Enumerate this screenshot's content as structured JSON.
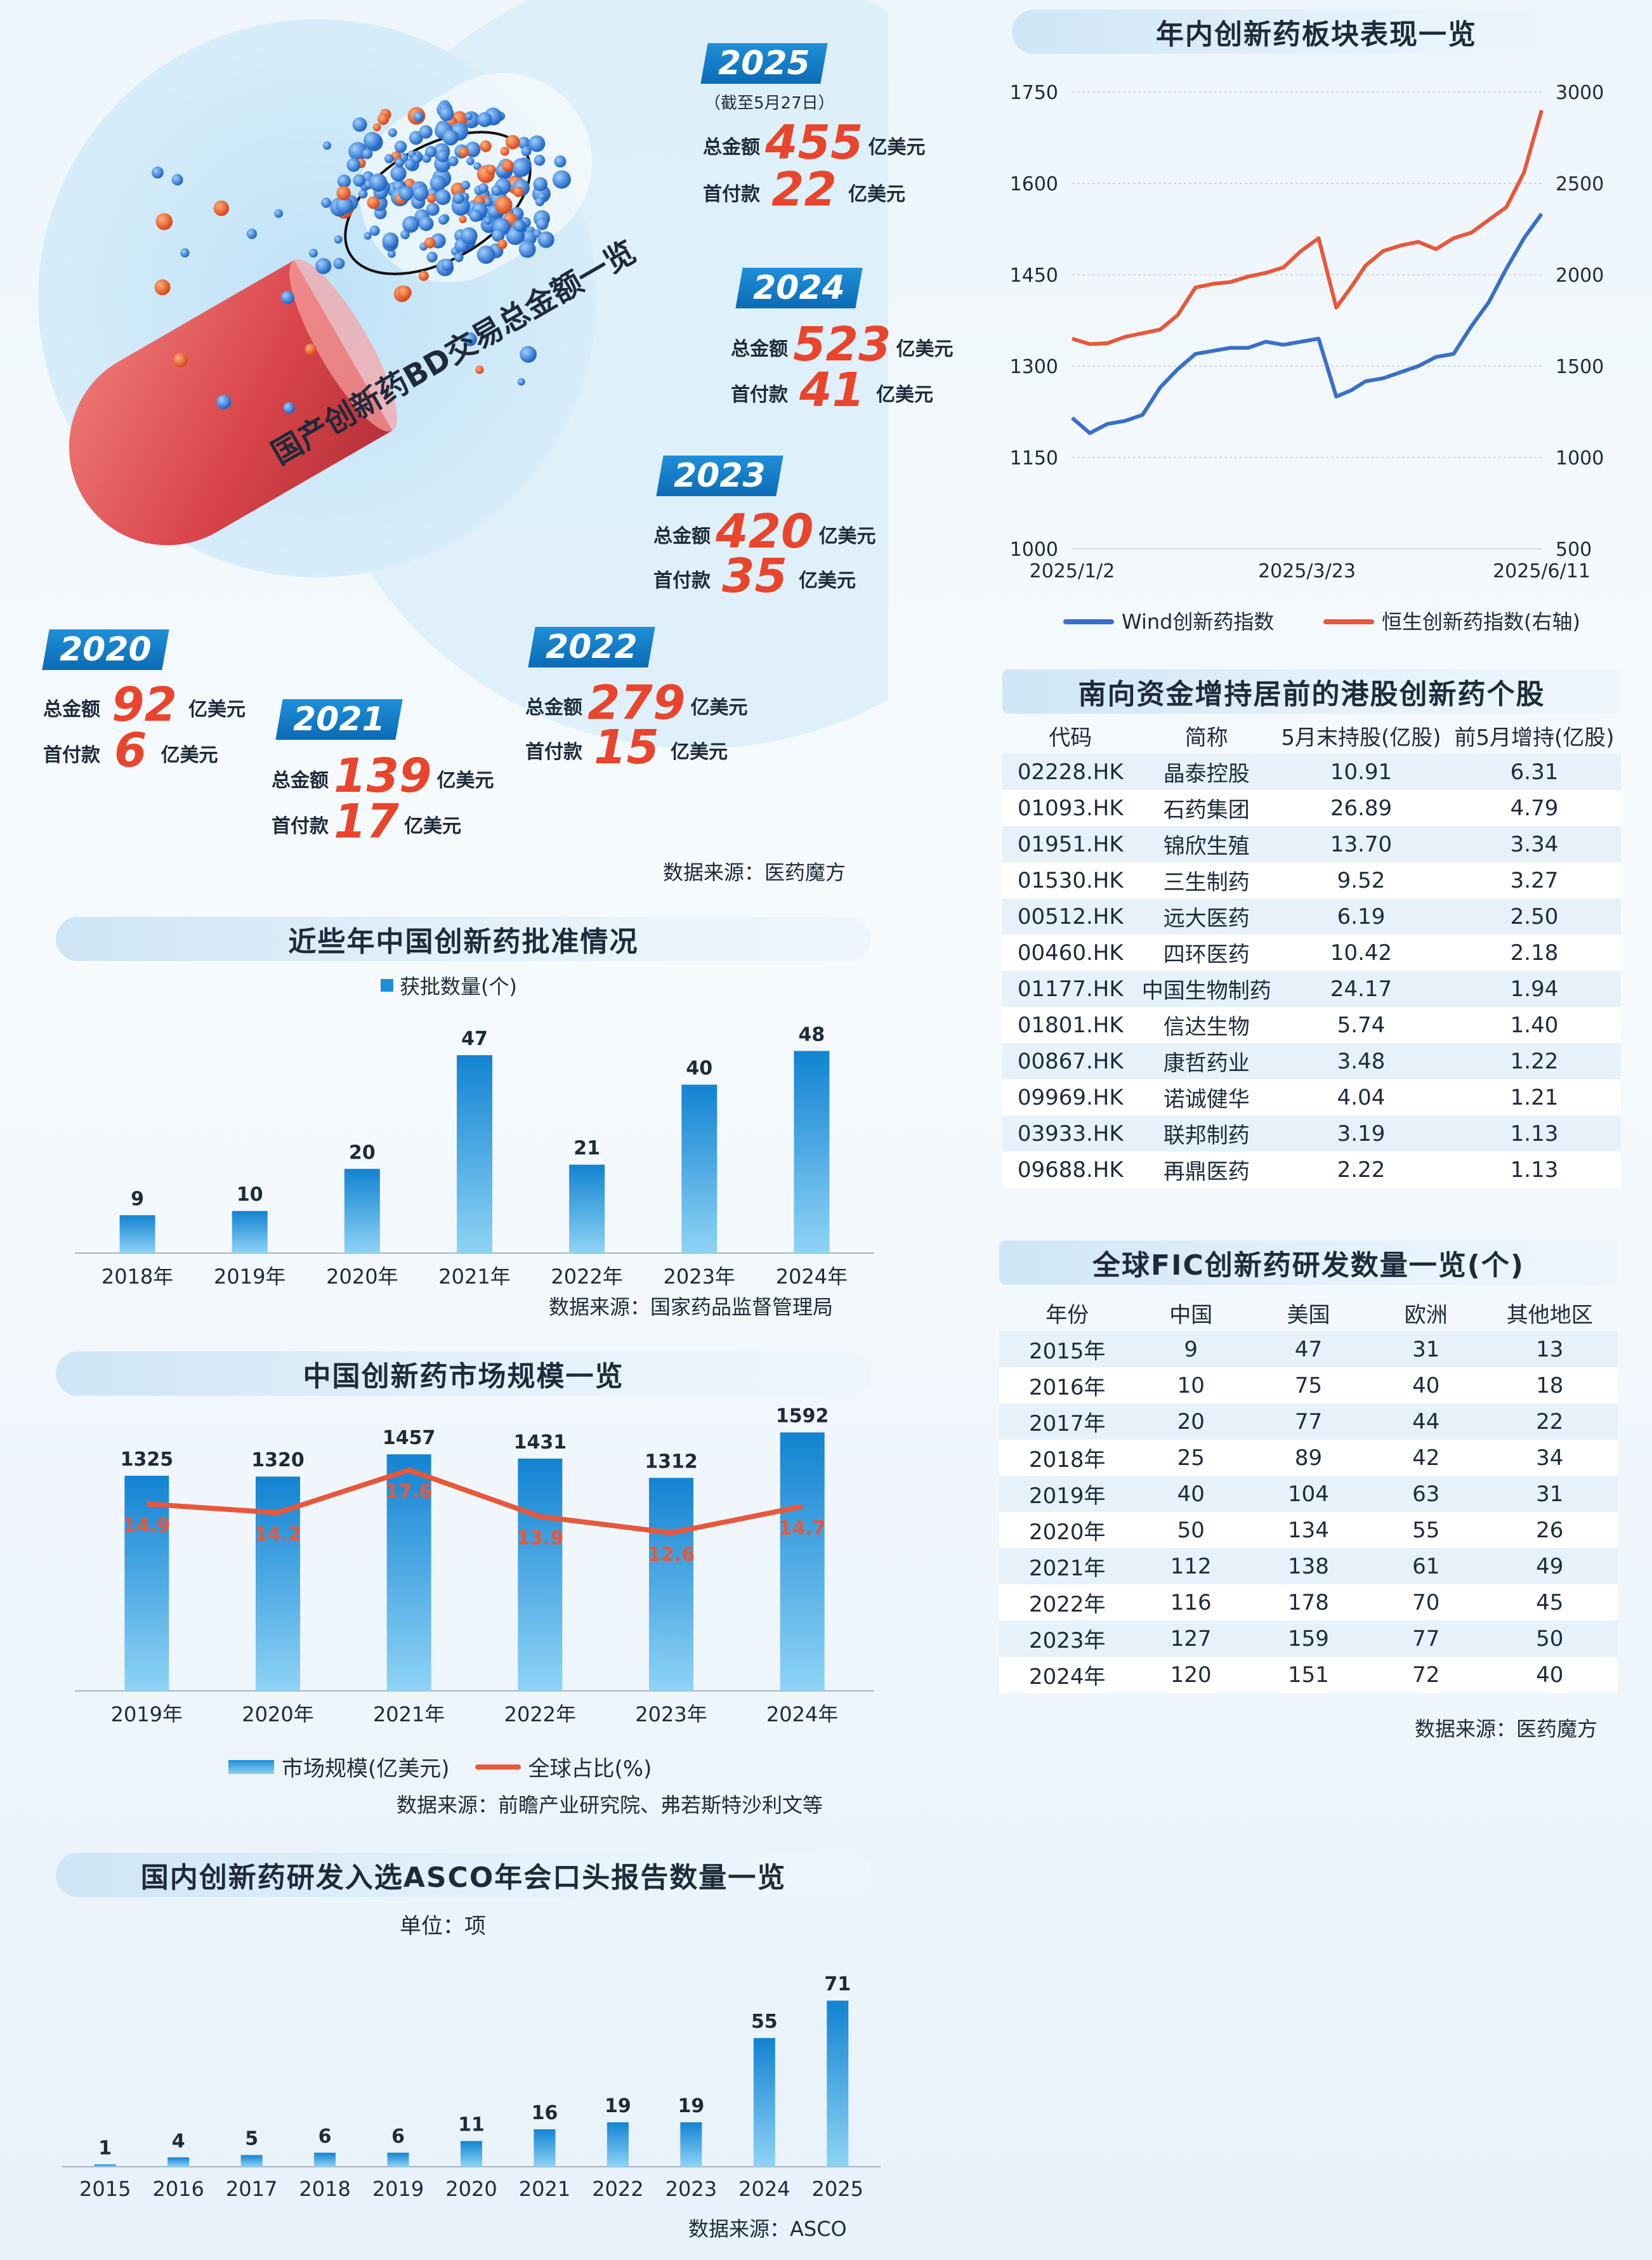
{
  "bd_panel": {
    "title": "国产创新药BD交易总金额一览",
    "source": "数据来源：医药魔方",
    "total_label": "总金额",
    "upfront_label": "首付款",
    "unit": "亿美元",
    "years": [
      {
        "year": "2025",
        "note": "（截至5月27日）",
        "total": "455",
        "upfront": "22"
      },
      {
        "year": "2024",
        "note": "",
        "total": "523",
        "upfront": "41"
      },
      {
        "year": "2023",
        "note": "",
        "total": "420",
        "upfront": "35"
      },
      {
        "year": "2022",
        "note": "",
        "total": "279",
        "upfront": "15"
      },
      {
        "year": "2021",
        "note": "",
        "total": "139",
        "upfront": "17"
      },
      {
        "year": "2020",
        "note": "",
        "total": "92",
        "upfront": "6"
      }
    ],
    "colors": {
      "accent": "#e8452c",
      "badge": "#0b6bb5"
    }
  },
  "line_panel": {
    "title": "年内创新药板块表现一览",
    "legend": [
      "Wind创新药指数",
      "恒生创新药指数(右轴)"
    ],
    "colors": [
      "#3a6fc9",
      "#e8573a"
    ]
  },
  "south_table": {
    "title": "南向资金增持居前的港股创新药个股",
    "headers": [
      "代码",
      "简称",
      "5月末持股(亿股)",
      "前5月增持(亿股)"
    ],
    "rows": [
      [
        "02228.HK",
        "晶泰控股",
        "10.91",
        "6.31"
      ],
      [
        "01093.HK",
        "石药集团",
        "26.89",
        "4.79"
      ],
      [
        "01951.HK",
        "锦欣生殖",
        "13.70",
        "3.34"
      ],
      [
        "01530.HK",
        "三生制药",
        "9.52",
        "3.27"
      ],
      [
        "00512.HK",
        "远大医药",
        "6.19",
        "2.50"
      ],
      [
        "00460.HK",
        "四环医药",
        "10.42",
        "2.18"
      ],
      [
        "01177.HK",
        "中国生物制药",
        "24.17",
        "1.94"
      ],
      [
        "01801.HK",
        "信达生物",
        "5.74",
        "1.40"
      ],
      [
        "00867.HK",
        "康哲药业",
        "3.48",
        "1.22"
      ],
      [
        "09969.HK",
        "诺诚健华",
        "4.04",
        "1.21"
      ],
      [
        "03933.HK",
        "联邦制药",
        "3.19",
        "1.13"
      ],
      [
        "09688.HK",
        "再鼎医药",
        "2.22",
        "1.13"
      ]
    ]
  },
  "fic_table": {
    "title": "全球FIC创新药研发数量一览(个)",
    "headers": [
      "年份",
      "中国",
      "美国",
      "欧洲",
      "其他地区"
    ],
    "rows": [
      [
        "2015年",
        "9",
        "47",
        "31",
        "13"
      ],
      [
        "2016年",
        "10",
        "75",
        "40",
        "18"
      ],
      [
        "2017年",
        "20",
        "77",
        "44",
        "22"
      ],
      [
        "2018年",
        "25",
        "89",
        "42",
        "34"
      ],
      [
        "2019年",
        "40",
        "104",
        "63",
        "31"
      ],
      [
        "2020年",
        "50",
        "134",
        "55",
        "26"
      ],
      [
        "2021年",
        "112",
        "138",
        "61",
        "49"
      ],
      [
        "2022年",
        "116",
        "178",
        "70",
        "45"
      ],
      [
        "2023年",
        "127",
        "159",
        "77",
        "50"
      ],
      [
        "2024年",
        "120",
        "151",
        "72",
        "40"
      ]
    ],
    "source": "数据来源：医药魔方"
  },
  "approvals_panel": {
    "title": "近些年中国创新药批准情况",
    "legend": "获批数量(个)",
    "source": "数据来源：国家药品监督管理局"
  },
  "market_panel": {
    "title": "中国创新药市场规模一览",
    "legend": [
      "市场规模(亿美元)",
      "全球占比(%)"
    ],
    "source": "数据来源：前瞻产业研究院、弗若斯特沙利文等"
  },
  "asco_panel": {
    "title": "国内创新药研发入选ASCO年会口头报告数量一览",
    "unit": "单位：项",
    "source": "数据来源：ASCO"
  },
  "chart_data": [
    {
      "id": "index_line",
      "type": "line",
      "title": "年内创新药板块表现一览",
      "x_ticks": [
        "2025/1/2",
        "2025/3/23",
        "2025/6/11"
      ],
      "x_range": [
        "2025-01-02",
        "2025-06-11"
      ],
      "ylim": [
        1000,
        1750
      ],
      "y_ticks": [
        1000,
        1150,
        1300,
        1450,
        1600,
        1750
      ],
      "y2lim": [
        500,
        3000
      ],
      "y2_ticks": [
        500,
        1000,
        1500,
        2000,
        2500,
        3000
      ],
      "grid": true,
      "legend_position": "bottom",
      "series": [
        {
          "name": "Wind创新药指数",
          "axis": "left",
          "x": [
            "2025-01-02",
            "2025-01-08",
            "2025-01-14",
            "2025-01-20",
            "2025-01-26",
            "2025-02-01",
            "2025-02-07",
            "2025-02-13",
            "2025-02-19",
            "2025-02-25",
            "2025-03-03",
            "2025-03-09",
            "2025-03-15",
            "2025-03-21",
            "2025-03-27",
            "2025-04-02",
            "2025-04-07",
            "2025-04-12",
            "2025-04-18",
            "2025-04-24",
            "2025-04-30",
            "2025-05-06",
            "2025-05-12",
            "2025-05-18",
            "2025-05-24",
            "2025-05-30",
            "2025-06-05",
            "2025-06-11"
          ],
          "values": [
            1215,
            1190,
            1205,
            1210,
            1220,
            1265,
            1295,
            1320,
            1325,
            1330,
            1330,
            1340,
            1335,
            1340,
            1345,
            1250,
            1260,
            1275,
            1280,
            1290,
            1300,
            1315,
            1320,
            1365,
            1405,
            1460,
            1510,
            1550
          ]
        },
        {
          "name": "恒生创新药指数(右轴)",
          "axis": "right",
          "x": [
            "2025-01-02",
            "2025-01-08",
            "2025-01-14",
            "2025-01-20",
            "2025-01-26",
            "2025-02-01",
            "2025-02-07",
            "2025-02-13",
            "2025-02-19",
            "2025-02-25",
            "2025-03-03",
            "2025-03-09",
            "2025-03-15",
            "2025-03-21",
            "2025-03-27",
            "2025-04-02",
            "2025-04-07",
            "2025-04-12",
            "2025-04-18",
            "2025-04-24",
            "2025-04-30",
            "2025-05-06",
            "2025-05-12",
            "2025-05-18",
            "2025-05-24",
            "2025-05-30",
            "2025-06-05",
            "2025-06-11"
          ],
          "values": [
            1650,
            1620,
            1625,
            1660,
            1680,
            1700,
            1780,
            1930,
            1950,
            1960,
            1990,
            2010,
            2040,
            2130,
            2200,
            1820,
            1930,
            2050,
            2130,
            2160,
            2180,
            2140,
            2200,
            2230,
            2300,
            2370,
            2560,
            2900
          ]
        }
      ]
    },
    {
      "id": "approvals",
      "type": "bar",
      "title": "近些年中国创新药批准情况",
      "categories": [
        "2018年",
        "2019年",
        "2020年",
        "2021年",
        "2022年",
        "2023年",
        "2024年"
      ],
      "series": [
        {
          "name": "获批数量(个)",
          "values": [
            9,
            10,
            20,
            47,
            21,
            40,
            48
          ]
        }
      ],
      "ylim": [
        0,
        55
      ],
      "legend_position": "top"
    },
    {
      "id": "market",
      "type": "bar",
      "title": "中国创新药市场规模一览",
      "categories": [
        "2019年",
        "2020年",
        "2021年",
        "2022年",
        "2023年",
        "2024年"
      ],
      "series": [
        {
          "name": "市场规模(亿美元)",
          "type": "bar",
          "values": [
            1325,
            1320,
            1457,
            1431,
            1312,
            1592
          ]
        },
        {
          "name": "全球占比(%)",
          "type": "line",
          "values": [
            14.9,
            14.2,
            17.6,
            13.9,
            12.6,
            14.7
          ]
        }
      ],
      "ylim": [
        0,
        1700
      ],
      "y2lim": [
        0,
        22
      ],
      "legend_position": "bottom"
    },
    {
      "id": "asco",
      "type": "bar",
      "title": "国内创新药研发入选ASCO年会口头报告数量一览",
      "categories": [
        "2015",
        "2016",
        "2017",
        "2018",
        "2019",
        "2020",
        "2021",
        "2022",
        "2023",
        "2024",
        "2025"
      ],
      "series": [
        {
          "name": "",
          "values": [
            1,
            4,
            5,
            6,
            6,
            11,
            16,
            19,
            19,
            55,
            71
          ]
        }
      ],
      "ylim": [
        0,
        80
      ]
    }
  ]
}
